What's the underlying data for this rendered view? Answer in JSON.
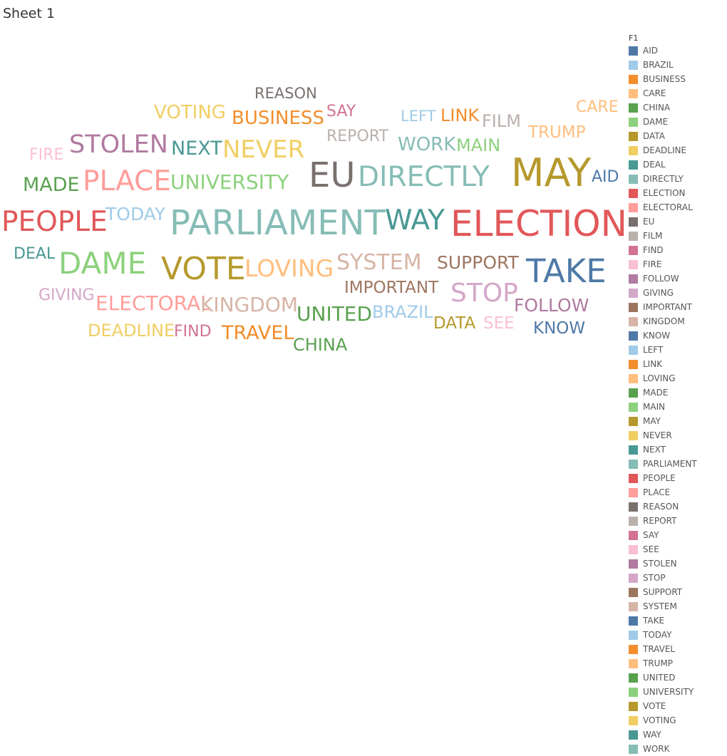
{
  "sheet": {
    "title": "Sheet 1"
  },
  "chart_data": {
    "type": "word_cloud",
    "legend": {
      "title": "F1",
      "placement": "right"
    },
    "words": [
      {
        "text": "AID",
        "weight": 2,
        "color": "#4E79A7"
      },
      {
        "text": "BRAZIL",
        "weight": 2,
        "color": "#A0CBE8"
      },
      {
        "text": "BUSINESS",
        "weight": 2.5,
        "color": "#F28E2B"
      },
      {
        "text": "CARE",
        "weight": 2,
        "color": "#FFBE7D"
      },
      {
        "text": "CHINA",
        "weight": 2,
        "color": "#59A14F"
      },
      {
        "text": "DAME",
        "weight": 4,
        "color": "#8CD17D"
      },
      {
        "text": "DATA",
        "weight": 2,
        "color": "#B6992D"
      },
      {
        "text": "DEADLINE",
        "weight": 2,
        "color": "#F1CE63"
      },
      {
        "text": "DEAL",
        "weight": 2,
        "color": "#499894"
      },
      {
        "text": "DIRECTLY",
        "weight": 4,
        "color": "#86BCB6"
      },
      {
        "text": "ELECTION",
        "weight": 5.5,
        "color": "#E15759"
      },
      {
        "text": "ELECTORAL",
        "weight": 2.5,
        "color": "#FF9D9A"
      },
      {
        "text": "EU",
        "weight": 5,
        "color": "#79706E"
      },
      {
        "text": "FILM",
        "weight": 2.5,
        "color": "#BAB0AC"
      },
      {
        "text": "FIND",
        "weight": 2,
        "color": "#D37295"
      },
      {
        "text": "FIRE",
        "weight": 2,
        "color": "#FABFD2"
      },
      {
        "text": "FOLLOW",
        "weight": 2,
        "color": "#B07AA1"
      },
      {
        "text": "GIVING",
        "weight": 2,
        "color": "#D4A6C8"
      },
      {
        "text": "IMPORTANT",
        "weight": 2,
        "color": "#9D7660"
      },
      {
        "text": "KINGDOM",
        "weight": 2.5,
        "color": "#D7B5A6"
      },
      {
        "text": "KNOW",
        "weight": 2,
        "color": "#4E79A7"
      },
      {
        "text": "LEFT",
        "weight": 2,
        "color": "#A0CBE8"
      },
      {
        "text": "LINK",
        "weight": 2.5,
        "color": "#F28E2B"
      },
      {
        "text": "LOVING",
        "weight": 3,
        "color": "#FFBE7D"
      },
      {
        "text": "MADE",
        "weight": 2.5,
        "color": "#59A14F"
      },
      {
        "text": "MAIN",
        "weight": 2,
        "color": "#8CD17D"
      },
      {
        "text": "MAY",
        "weight": 6,
        "color": "#B6992D"
      },
      {
        "text": "NEVER",
        "weight": 3,
        "color": "#F1CE63"
      },
      {
        "text": "NEXT",
        "weight": 2.5,
        "color": "#499894"
      },
      {
        "text": "PARLIAMENT",
        "weight": 5.5,
        "color": "#86BCB6"
      },
      {
        "text": "PEOPLE",
        "weight": 4,
        "color": "#E15759"
      },
      {
        "text": "PLACE",
        "weight": 4,
        "color": "#FF9D9A"
      },
      {
        "text": "REASON",
        "weight": 2,
        "color": "#79706E"
      },
      {
        "text": "REPORT",
        "weight": 2,
        "color": "#BAB0AC"
      },
      {
        "text": "SAY",
        "weight": 2,
        "color": "#D37295"
      },
      {
        "text": "SEE",
        "weight": 2,
        "color": "#FABFD2"
      },
      {
        "text": "STOLEN",
        "weight": 3,
        "color": "#B07AA1"
      },
      {
        "text": "STOP",
        "weight": 3,
        "color": "#D4A6C8"
      },
      {
        "text": "SUPPORT",
        "weight": 2,
        "color": "#9D7660"
      },
      {
        "text": "SYSTEM",
        "weight": 2.5,
        "color": "#D7B5A6"
      },
      {
        "text": "TAKE",
        "weight": 4.5,
        "color": "#4E79A7"
      },
      {
        "text": "TODAY",
        "weight": 2,
        "color": "#A0CBE8"
      },
      {
        "text": "TRAVEL",
        "weight": 2,
        "color": "#F28E2B"
      },
      {
        "text": "TRUMP",
        "weight": 2,
        "color": "#FFBE7D"
      },
      {
        "text": "UNITED",
        "weight": 2.5,
        "color": "#59A14F"
      },
      {
        "text": "UNIVERSITY",
        "weight": 2.5,
        "color": "#8CD17D"
      },
      {
        "text": "VOTE",
        "weight": 4.5,
        "color": "#B6992D"
      },
      {
        "text": "VOTING",
        "weight": 2.5,
        "color": "#F1CE63"
      },
      {
        "text": "WAY",
        "weight": 4,
        "color": "#499894"
      },
      {
        "text": "WORK",
        "weight": 2.5,
        "color": "#86BCB6"
      }
    ]
  }
}
